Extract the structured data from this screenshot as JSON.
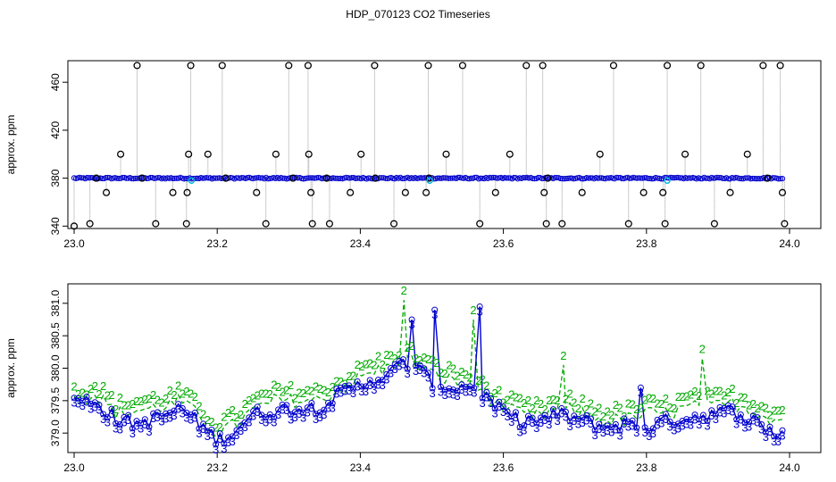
{
  "title": "HDP_070123  CO2 Timeseries",
  "colors": {
    "black": "#000000",
    "blue": "#0000cc",
    "green": "#00aa00",
    "cyan": "#00bbdd",
    "gray": "#999999"
  },
  "chart_data": [
    {
      "type": "scatter",
      "ylabel": "approx. ppm",
      "xlabel": "",
      "xlim": [
        23.0,
        24.0
      ],
      "ylim": [
        338,
        478
      ],
      "xticks": [
        "23.0",
        "23.2",
        "23.4",
        "23.6",
        "23.8",
        "24.0"
      ],
      "yticks": [
        "340",
        "380",
        "420",
        "460"
      ],
      "grid": false,
      "series": [
        {
          "marker": "circle",
          "color": "#000000",
          "x": [
            23.0,
            23.022,
            23.031,
            23.045,
            23.065,
            23.088,
            23.095,
            23.114,
            23.138,
            23.157,
            23.158,
            23.16,
            23.163,
            23.187,
            23.207,
            23.212,
            23.255,
            23.268,
            23.282,
            23.3,
            23.306,
            23.327,
            23.328,
            23.331,
            23.333,
            23.353,
            23.357,
            23.386,
            23.401,
            23.42,
            23.421,
            23.447,
            23.463,
            23.492,
            23.495,
            23.496,
            23.52,
            23.543,
            23.567,
            23.589,
            23.609,
            23.632,
            23.655,
            23.657,
            23.66,
            23.662,
            23.682,
            23.71,
            23.735,
            23.754,
            23.775,
            23.796,
            23.823,
            23.826,
            23.829,
            23.854,
            23.876,
            23.895,
            23.917,
            23.941,
            23.963,
            23.969,
            23.987,
            23.99,
            23.993
          ],
          "y": [
            340,
            342,
            380,
            368,
            400,
            474,
            380,
            342,
            368,
            342,
            368,
            400,
            474,
            400,
            474,
            380,
            368,
            342,
            400,
            474,
            380,
            474,
            400,
            368,
            342,
            380,
            342,
            368,
            400,
            474,
            380,
            342,
            368,
            368,
            474,
            380,
            400,
            474,
            342,
            368,
            400,
            474,
            474,
            368,
            342,
            380,
            342,
            368,
            400,
            474,
            342,
            368,
            368,
            342,
            474,
            400,
            474,
            342,
            368,
            400,
            474,
            380,
            474,
            368,
            342
          ]
        },
        {
          "marker": "circle",
          "color": "#0000cc",
          "name": "",
          "x": [],
          "y": []
        }
      ],
      "cyan_points": {
        "x": [
          23.164,
          23.497,
          23.829
        ],
        "y": [
          378,
          378,
          378
        ]
      },
      "baseline": 380
    },
    {
      "type": "line",
      "ylabel": "approx. ppm",
      "xlabel": "",
      "xlim": [
        23.0,
        24.0
      ],
      "ylim": [
        378.7,
        381.3
      ],
      "xticks": [
        "23.0",
        "23.2",
        "23.4",
        "23.6",
        "23.8",
        "24.0"
      ],
      "yticks": [
        "379.0",
        "379.5",
        "380.0",
        "380.5",
        "381.0"
      ],
      "series_markers": [
        "3",
        "2"
      ],
      "series_colors": [
        "#0000cc",
        "#00aa00"
      ],
      "anchors": {
        "x": [
          23.0,
          23.03,
          23.06,
          23.09,
          23.12,
          23.15,
          23.18,
          23.2,
          23.22,
          23.25,
          23.28,
          23.31,
          23.34,
          23.37,
          23.4,
          23.42,
          23.44,
          23.46,
          23.48,
          23.5,
          23.53,
          23.56,
          23.59,
          23.62,
          23.65,
          23.68,
          23.71,
          23.74,
          23.77,
          23.8,
          23.83,
          23.86,
          23.89,
          23.92,
          23.95,
          23.98,
          24.0
        ],
        "blue": [
          379.5,
          379.5,
          379.2,
          379.15,
          379.25,
          379.4,
          379.1,
          378.9,
          379.0,
          379.3,
          379.35,
          379.4,
          379.4,
          379.6,
          379.75,
          379.85,
          379.9,
          380.1,
          380.0,
          379.8,
          379.7,
          379.75,
          379.4,
          379.2,
          379.2,
          379.3,
          379.2,
          379.1,
          379.15,
          379.1,
          379.2,
          379.25,
          379.3,
          379.35,
          379.2,
          379.0,
          379.0
        ],
        "green": [
          379.5,
          379.6,
          379.3,
          379.35,
          379.4,
          379.5,
          379.2,
          379.0,
          379.1,
          379.35,
          379.5,
          379.5,
          379.5,
          379.65,
          379.85,
          379.95,
          380.0,
          380.2,
          380.05,
          379.9,
          379.8,
          379.75,
          379.45,
          379.3,
          379.25,
          379.4,
          379.3,
          379.2,
          379.2,
          379.3,
          379.3,
          379.4,
          379.4,
          379.45,
          379.35,
          379.2,
          379.2
        ]
      },
      "spikes": [
        {
          "x": 23.461,
          "series": "green",
          "y": 381.05
        },
        {
          "x": 23.472,
          "series": "blue",
          "y": 380.75
        },
        {
          "x": 23.504,
          "series": "blue",
          "y": 380.9
        },
        {
          "x": 23.558,
          "series": "green",
          "y": 380.75
        },
        {
          "x": 23.567,
          "series": "blue",
          "y": 380.95
        },
        {
          "x": 23.684,
          "series": "green",
          "y": 380.05
        },
        {
          "x": 23.792,
          "series": "blue",
          "y": 379.7
        },
        {
          "x": 23.878,
          "series": "green",
          "y": 380.15
        }
      ]
    }
  ]
}
